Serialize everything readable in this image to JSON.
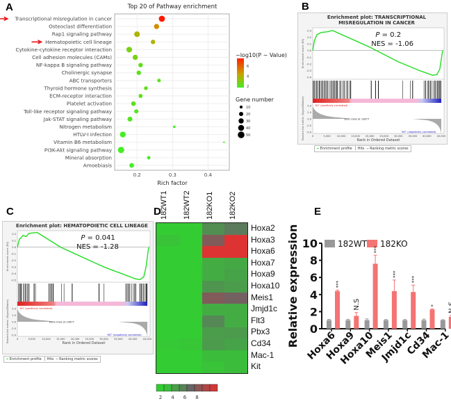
{
  "panels": {
    "a": "A",
    "b": "B",
    "c": "C",
    "d": "D",
    "e": "E"
  },
  "chart_data": [
    {
      "type": "scatter",
      "id": "A",
      "title": "Top 20 of Pathway enrichment",
      "xlabel": "Rich factor",
      "xticks": [
        0.2,
        0.3,
        0.4
      ],
      "xlim": [
        0.137,
        0.46
      ],
      "color_legend_title": "−log10(P − Value)",
      "color_ticks": [
        2,
        4,
        6
      ],
      "size_legend_title": "Gene number",
      "size_ticks": [
        10,
        20,
        30,
        40,
        50
      ],
      "highlighted": [
        "Transcriptional misregulation in cancer",
        "Hematopoietic cell lineage"
      ],
      "arrow_color": "#e8171b",
      "points": [
        {
          "pathway": "Transcriptional misregulation in cancer",
          "rich": 0.27,
          "logp": 7.5,
          "genes": 42
        },
        {
          "pathway": "Osteoclast differentiation",
          "rich": 0.255,
          "logp": 5,
          "genes": 30
        },
        {
          "pathway": "Rap1 signaling pathway",
          "rich": 0.2,
          "logp": 4,
          "genes": 36
        },
        {
          "pathway": "Hematopoietic cell lineage",
          "rich": 0.245,
          "logp": 4,
          "genes": 22
        },
        {
          "pathway": "Cytokine-cytokine receptor interaction",
          "rich": 0.178,
          "logp": 3,
          "genes": 36
        },
        {
          "pathway": "Cell adhesion molecules (CAMs)",
          "rich": 0.195,
          "logp": 3,
          "genes": 30
        },
        {
          "pathway": "NF-kappa B signaling pathway",
          "rich": 0.21,
          "logp": 2.5,
          "genes": 22
        },
        {
          "pathway": "Cholinergic synapse",
          "rich": 0.205,
          "logp": 2.5,
          "genes": 22
        },
        {
          "pathway": "ABC transporters",
          "rich": 0.262,
          "logp": 2.5,
          "genes": 14
        },
        {
          "pathway": "Thyroid hormone synthesis",
          "rich": 0.225,
          "logp": 2.5,
          "genes": 16
        },
        {
          "pathway": "ECM-receptor interaction",
          "rich": 0.21,
          "logp": 2.5,
          "genes": 18
        },
        {
          "pathway": "Platelet activation",
          "rich": 0.19,
          "logp": 2.4,
          "genes": 24
        },
        {
          "pathway": "Toll-like receptor signaling pathway",
          "rich": 0.198,
          "logp": 2.3,
          "genes": 20
        },
        {
          "pathway": "Jak-STAT signaling pathway",
          "rich": 0.18,
          "logp": 2.3,
          "genes": 27
        },
        {
          "pathway": "Nitrogen metabolism",
          "rich": 0.305,
          "logp": 2,
          "genes": 7
        },
        {
          "pathway": "HTLV-I infection",
          "rich": 0.16,
          "logp": 2,
          "genes": 38
        },
        {
          "pathway": "Vitamin B6 metabolism",
          "rich": 0.445,
          "logp": 2,
          "genes": 3
        },
        {
          "pathway": "PI3K-Akt signaling pathway",
          "rich": 0.155,
          "logp": 2,
          "genes": 45
        },
        {
          "pathway": "Mineral absorption",
          "rich": 0.233,
          "logp": 2,
          "genes": 13
        },
        {
          "pathway": "Amoebiasis",
          "rich": 0.185,
          "logp": 2,
          "genes": 24
        }
      ]
    },
    {
      "type": "line",
      "id": "B",
      "title": [
        "Enrichment plot: TRANSCRIPTIONAL",
        "MISREGULATION IN CANCER"
      ],
      "p_label": "P",
      "p_value": "= 0.2",
      "nes": "NES = -1.06",
      "es_ylabel": "Enrichment score (ES)",
      "metric_ylabel": "Ranked list metric (Signal2Noise)",
      "xlabel": "Rank in Ordered Dataset",
      "es_ticks": [
        0.3,
        0.2,
        0.1,
        0.0,
        -0.1,
        -0.2,
        -0.3,
        -0.4
      ],
      "es_lim": [
        0.34,
        -0.43
      ],
      "metric_ticks": [
        "5.0",
        "2.5",
        "0.0",
        "-2.5",
        "-5.0"
      ],
      "xticks": [
        "0",
        "5,000",
        "10,000",
        "15,000",
        "20,000",
        "25,000",
        "30,000",
        "35,000",
        "40,000",
        "45,000"
      ],
      "pos_label": "'KO' (positively correlated)",
      "neg_label": "'WT' (negatively correlated)",
      "zero_cross": "Zero cross at 13677",
      "es_curve": [
        [
          0,
          0
        ],
        [
          600,
          0.15
        ],
        [
          1500,
          0.24
        ],
        [
          3000,
          0.27
        ],
        [
          5000,
          0.28
        ],
        [
          7000,
          0.3
        ],
        [
          9000,
          0.26
        ],
        [
          20000,
          0.05
        ],
        [
          30000,
          -0.17
        ],
        [
          38000,
          -0.31
        ],
        [
          42000,
          -0.37
        ],
        [
          43500,
          -0.36
        ],
        [
          44500,
          -0.28
        ],
        [
          45500,
          0
        ]
      ],
      "hits": [
        200,
        600,
        900,
        1400,
        1800,
        2300,
        2700,
        3200,
        3600,
        4100,
        4500,
        5000,
        5400,
        6000,
        6500,
        7100,
        7600,
        8200,
        8600,
        9300,
        9800,
        10500,
        11000,
        11700,
        12200,
        12900,
        13300,
        20500,
        22000,
        23000,
        31500,
        34200,
        35000,
        39000,
        39500,
        40200,
        40600,
        41200,
        41700,
        42300,
        42800,
        43200,
        43700,
        44200,
        44600,
        45000
      ]
    },
    {
      "type": "line",
      "id": "C",
      "title": [
        "Enrichment plot: HEMATOPOIETIC CELL LINEAGE"
      ],
      "p_label": "P",
      "p_value": "= 0.041",
      "nes": "NES = -1.28",
      "es_ylabel": "Enrichment score (ES)",
      "metric_ylabel": "Ranked list metric (Signal2Noise)",
      "xlabel": "Rank in Ordered Dataset",
      "es_ticks": [
        0.2,
        0.1,
        0.0,
        -0.1,
        -0.2,
        -0.3,
        -0.4,
        -0.5
      ],
      "es_lim": [
        0.25,
        -0.53
      ],
      "metric_ticks": [
        "5.0",
        "2.5",
        "0.0",
        "-2.5",
        "-5.0"
      ],
      "xticks": [
        "0",
        "5,000",
        "10,000",
        "15,000",
        "20,000",
        "25,000",
        "30,000",
        "35,000",
        "40,000",
        "45,000"
      ],
      "pos_label": "'KO' (positively correlated)",
      "neg_label": "'WT' (negatively correlated)",
      "zero_cross": "Zero cross at 13677",
      "es_curve": [
        [
          0,
          0
        ],
        [
          700,
          0.12
        ],
        [
          2000,
          0.18
        ],
        [
          3000,
          0.16
        ],
        [
          4000,
          0.21
        ],
        [
          6000,
          0.22
        ],
        [
          7000,
          0.22
        ],
        [
          15000,
          0.0
        ],
        [
          30000,
          -0.3
        ],
        [
          41000,
          -0.48
        ],
        [
          42500,
          -0.49
        ],
        [
          43800,
          -0.45
        ],
        [
          44600,
          -0.3
        ],
        [
          45500,
          0
        ]
      ],
      "hits": [
        500,
        1000,
        1400,
        2200,
        2800,
        3400,
        4000,
        5800,
        6300,
        11000,
        11600,
        12000,
        12400,
        15300,
        16200,
        19000,
        28300,
        30000,
        37500,
        38000,
        38600,
        39000,
        39600,
        40200,
        40700,
        41100,
        42500,
        43000,
        43600,
        44100,
        44600,
        44900
      ]
    },
    {
      "type": "heatmap",
      "id": "D",
      "columns": [
        "182WT1",
        "182WT2",
        "182KO1",
        "182KO2"
      ],
      "rows": [
        "Hoxa2",
        "Hoxa3",
        "Hoxa6",
        "Hoxa7",
        "Hoxa9",
        "Hoxa10",
        "Meis1",
        "Jmjd1c",
        "Flt3",
        "Pbx3",
        "Cd34",
        "Mac-1",
        "Kit"
      ],
      "values": [
        [
          2,
          2,
          4,
          4.6
        ],
        [
          2.3,
          2,
          6,
          8.5
        ],
        [
          2,
          2,
          8.5,
          8.5
        ],
        [
          2,
          2,
          3,
          3.1
        ],
        [
          2,
          2,
          3,
          3.3
        ],
        [
          2,
          2,
          3.8,
          3.5
        ],
        [
          2,
          2,
          6,
          5.6
        ],
        [
          2,
          2,
          3,
          3
        ],
        [
          2,
          2,
          4.2,
          3
        ],
        [
          2,
          2,
          3.5,
          3.6
        ],
        [
          2.1,
          2.2,
          3.6,
          3.3
        ],
        [
          2,
          2,
          2.5,
          2.5
        ],
        [
          2,
          2,
          2.3,
          2.5
        ]
      ],
      "colorbar_ticks": [
        2,
        4,
        6,
        8
      ],
      "range": [
        1.5,
        9
      ]
    },
    {
      "type": "bar",
      "id": "E",
      "ylabel": "Relative expression",
      "ylim": [
        0,
        10
      ],
      "yticks": [
        0,
        2,
        4,
        6,
        8,
        10
      ],
      "categories": [
        "Hoxa6",
        "Hoxa9",
        "Hoxa10",
        "Meis1",
        "Jmjd1c",
        "Cd34",
        "Mac-1"
      ],
      "series": [
        {
          "name": "182WT",
          "color": "#999999",
          "values": [
            1,
            1,
            1,
            1,
            1,
            1,
            1
          ],
          "errors": [
            0.1,
            0.1,
            0.15,
            0.08,
            0.08,
            0.12,
            0.06
          ]
        },
        {
          "name": "182KO",
          "color": "#f47373",
          "values": [
            4.4,
            1.5,
            7.6,
            4.4,
            4.3,
            2.25,
            1.4
          ],
          "errors": [
            0.12,
            0.4,
            1.0,
            1.3,
            0.8,
            0.06,
            0.15
          ]
        }
      ],
      "significance": [
        "***",
        "N.S",
        "***",
        "***",
        "***",
        "*",
        "N.S"
      ]
    }
  ],
  "gsea_legend": {
    "profile": "Enrichment profile",
    "hits": "Hits",
    "metric": "Ranking metric scores"
  }
}
